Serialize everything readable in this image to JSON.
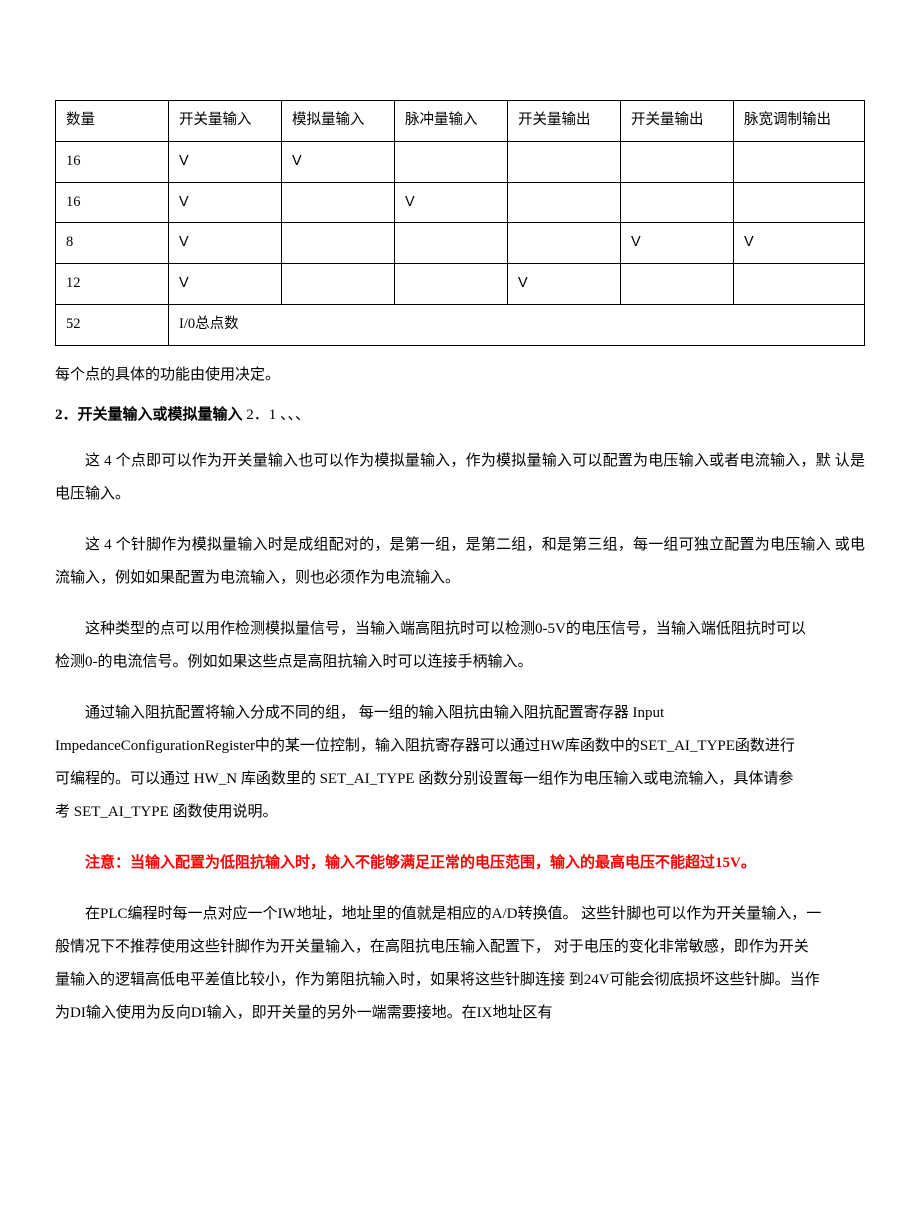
{
  "table": {
    "headers": [
      "数量",
      "开关量输入",
      "模拟量输入",
      "脉冲量输入",
      "开关量输出",
      "开关量输出",
      "脉宽调制输出"
    ],
    "rows": [
      [
        "16",
        "V",
        "V",
        "",
        "",
        "",
        ""
      ],
      [
        "16",
        "V",
        "",
        "V",
        "",
        "",
        ""
      ],
      [
        "8",
        "V",
        "",
        "",
        "",
        "V",
        "V"
      ],
      [
        "12",
        "V",
        "",
        "",
        "V",
        "",
        ""
      ],
      [
        "52",
        "I/0总点数",
        "",
        "",
        "",
        "",
        ""
      ]
    ],
    "last_row_span": 6,
    "col_widths": [
      "92px",
      "92px",
      "92px",
      "92px",
      "92px",
      "92px",
      "110px"
    ]
  },
  "caption": "每个点的具体的功能由使用决定。",
  "section_title_bold": "2．开关量输入或模拟量输入",
  "section_title_tail": " 2．1 、、、",
  "paragraphs": {
    "p1": "这 4 个点即可以作为开关量输入也可以作为模拟量输入，作为模拟量输入可以配置为电压输入或者电流输入，默 认是电压输入。",
    "p2": "这 4 个针脚作为模拟量输入时是成组配对的，是第一组，是第二组，和是第三组，每一组可独立配置为电压输入 或电流输入，例如如果配置为电流输入，则也必须作为电流输入。",
    "p3": "这种类型的点可以用作检测模拟量信号，当输入端高阻抗时可以检测0-5V的电压信号，当输入端低阻抗时可以",
    "p3b": "检测0-的电流信号。例如如果这些点是高阻抗输入时可以连接手柄输入。",
    "p4": "通过输入阻抗配置将输入分成不同的组， 每一组的输入阻抗由输入阻抗配置寄存器 Input",
    "p4b": "ImpedanceConfigurationRegister中的某一位控制，输入阻抗寄存器可以通过HW库函数中的SET_AI_TYPE函数进行",
    "p4c": "可编程的。可以通过 HW_N 库函数里的 SET_AI_TYPE 函数分别设置每一组作为电压输入或电流输入，具体请参",
    "p4d": "考 SET_AI_TYPE 函数使用说明。",
    "warn": "注意：当输入配置为低阻抗输入时，输入不能够满足正常的电压范围，输入的最高电压不能超过15V。",
    "p5": "在PLC编程时每一点对应一个IW地址，地址里的值就是相应的A/D转换值。 这些针脚也可以作为开关量输入，一",
    "p5b": "般情况下不推荐使用这些针脚作为开关量输入，在高阻抗电压输入配置下， 对于电压的变化非常敏感，即作为开关",
    "p5c": "量输入的逻辑高低电平差值比较小，作为第阻抗输入时，如果将这些针脚连接 到24V可能会彻底损坏这些针脚。当作",
    "p5d": "为DI输入使用为反向DI输入，即开关量的另外一端需要接地。在IX地址区有"
  },
  "colors": {
    "text": "#000000",
    "warn": "#ff0000",
    "border": "#000000",
    "background": "#ffffff"
  },
  "typography": {
    "base_font_size_pt": 11,
    "line_height_body": 2.2,
    "font_family": "SimSun"
  }
}
